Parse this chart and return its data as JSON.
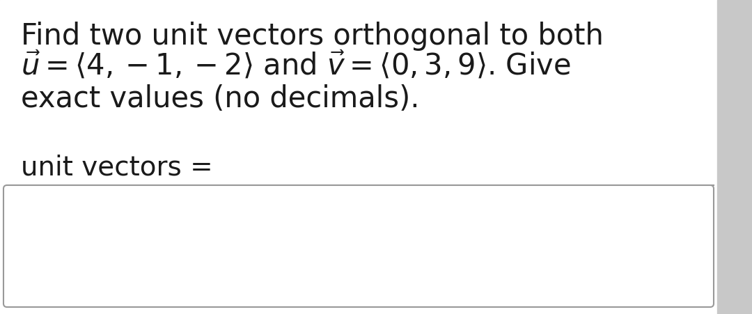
{
  "bg_color": "#e8e8e8",
  "main_bg": "#ffffff",
  "line1": "Find two unit vectors orthogonal to both",
  "line2_math": "$\\vec{u} = \\langle 4, -1, -2 \\rangle$ and $\\vec{v} = \\langle 0, 3, 9 \\rangle$. Give",
  "line3": "exact values (no decimals).",
  "label": "unit vectors =",
  "font_size_main": 30,
  "font_size_label": 28,
  "text_color": "#1a1a1a",
  "box_border_color": "#999999",
  "right_bar_color": "#c8c8c8",
  "figsize": [
    10.8,
    4.51
  ],
  "dpi": 100
}
